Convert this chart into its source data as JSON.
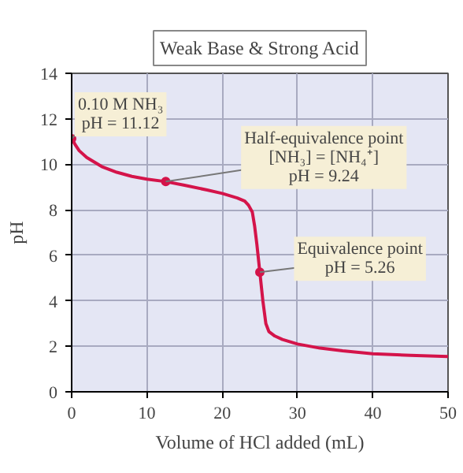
{
  "chart_data": {
    "type": "line",
    "title": "Weak Base & Strong Acid",
    "xlabel": "Volume of HCl added (mL)",
    "ylabel": "pH",
    "xlim": [
      0,
      50
    ],
    "ylim": [
      0,
      14
    ],
    "xticks": [
      0,
      10,
      20,
      30,
      40,
      50
    ],
    "yticks": [
      0,
      2,
      4,
      6,
      8,
      10,
      12,
      14
    ],
    "grid": true,
    "series": [
      {
        "color": "#d4144a",
        "x": [
          0,
          0.5,
          1,
          2,
          3,
          4,
          6,
          8,
          10,
          12.5,
          15,
          18,
          20,
          22,
          23,
          23.5,
          24,
          24.3,
          24.6,
          25,
          25.4,
          25.8,
          26.2,
          27,
          28,
          30,
          33,
          36,
          40,
          45,
          50
        ],
        "values": [
          11.12,
          10.85,
          10.6,
          10.3,
          10.1,
          9.9,
          9.65,
          9.47,
          9.35,
          9.24,
          9.08,
          8.87,
          8.72,
          8.52,
          8.38,
          8.2,
          7.9,
          7.3,
          6.5,
          5.26,
          4.0,
          3.0,
          2.65,
          2.45,
          2.3,
          2.1,
          1.92,
          1.8,
          1.67,
          1.6,
          1.55
        ]
      },
      {
        "type": "scatter",
        "color": "#d4144a",
        "marker": "circle",
        "x": [
          0,
          12.5,
          25
        ],
        "values": [
          11.12,
          9.24,
          5.26
        ]
      }
    ],
    "annotations": [
      {
        "text": "0.10 M NH₃\npH = 11.12",
        "x": 0,
        "y": 11.12
      },
      {
        "text": "Half-equivalence point\n[NH₃] = [NH₄⁺]\npH = 9.24",
        "x": 12.5,
        "y": 9.24
      },
      {
        "text": "Equivalence point\npH = 5.26",
        "x": 25,
        "y": 5.26
      }
    ]
  }
}
